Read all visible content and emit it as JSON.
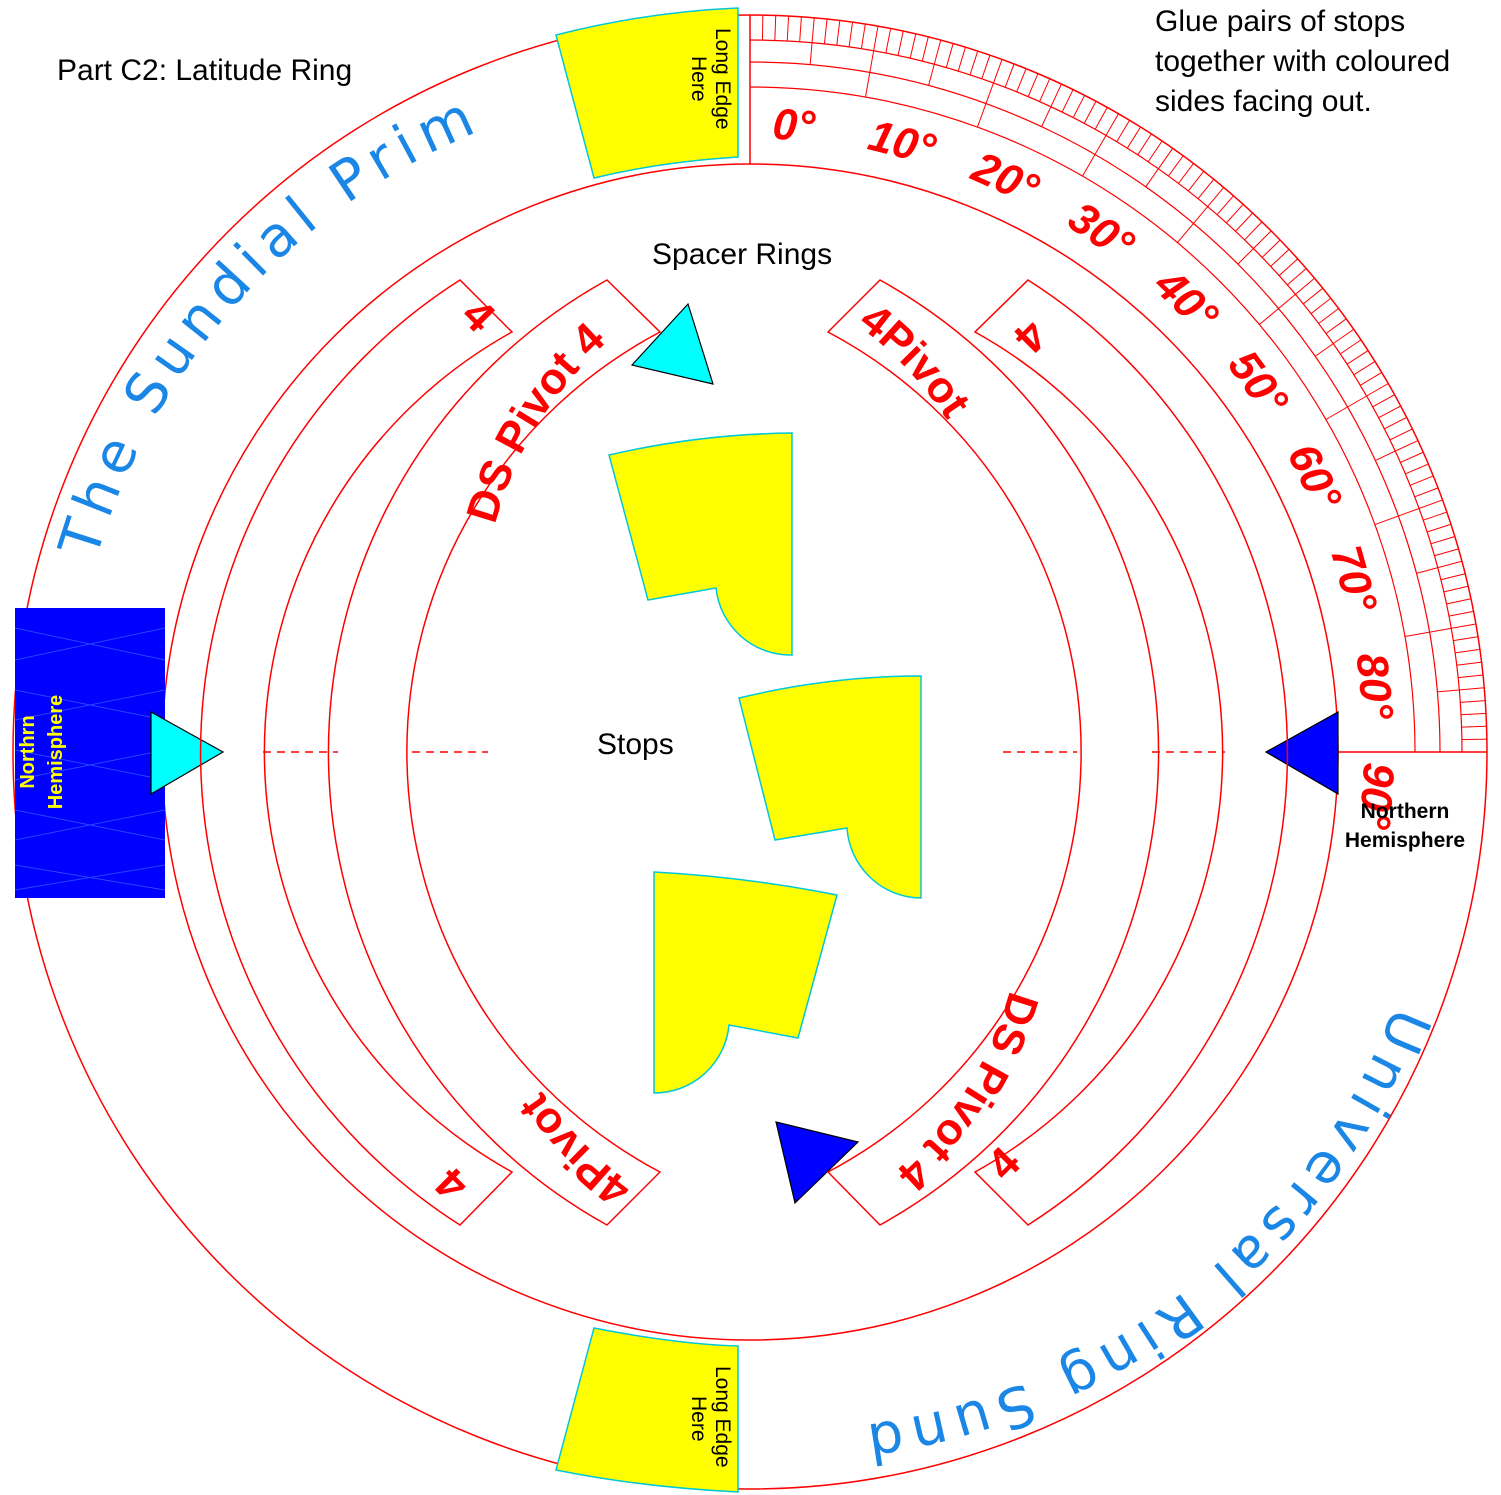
{
  "labels": {
    "part_title": "Part C2: Latitude Ring",
    "instructions": [
      "Glue pairs of stops",
      "together with coloured",
      "sides facing out."
    ],
    "spacer_rings": "Spacer Rings",
    "stops": "Stops",
    "ring_title_top": "The Sundial Primer",
    "ring_title_bottom": "Universal Ring Sundial",
    "long_edge": [
      "Long Edge",
      "Here"
    ],
    "left_tab": [
      "Northrn",
      "Hemisphere"
    ],
    "right_tab": [
      "Northern",
      "Hemisphere"
    ]
  },
  "scale": {
    "degree_labels": [
      "0°",
      "10°",
      "20°",
      "30°",
      "40°",
      "50°",
      "60°",
      "70°",
      "80°",
      "90°"
    ]
  },
  "spacer_labels": {
    "ds_pivot_4": "DS Pivot 4",
    "four_pivot": "4Pivot",
    "four": "4"
  },
  "colors": {
    "red": "#ff0000",
    "blue_text": "#1a86e6",
    "yellow": "#ffff00",
    "cyan": "#00ffff",
    "blue": "#0000ff",
    "black": "#000000"
  }
}
